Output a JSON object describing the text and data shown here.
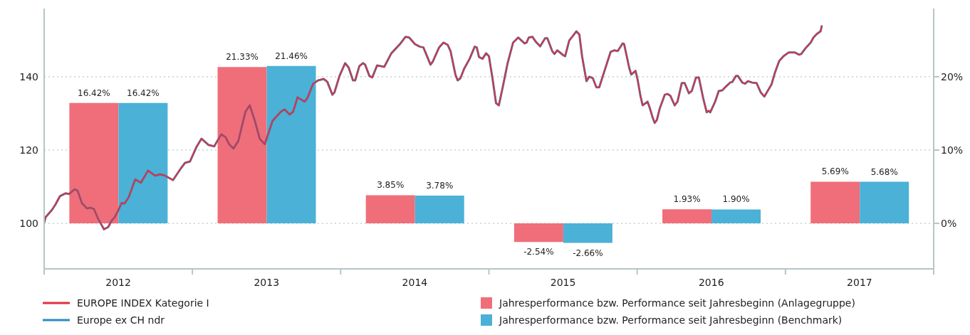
{
  "chart_data": {
    "type": "bar",
    "xlim": [
      2012,
      2018
    ],
    "xticks": [
      {
        "value": 2012,
        "label": null
      },
      {
        "value": 2012.5,
        "label": "2012"
      },
      {
        "value": 2013,
        "label": null
      },
      {
        "value": 2013.5,
        "label": "2013"
      },
      {
        "value": 2014,
        "label": null
      },
      {
        "value": 2014.5,
        "label": "2014"
      },
      {
        "value": 2015,
        "label": null
      },
      {
        "value": 2015.5,
        "label": "2015"
      },
      {
        "value": 2016,
        "label": null
      },
      {
        "value": 2016.5,
        "label": "2016"
      },
      {
        "value": 2017,
        "label": null
      },
      {
        "value": 2017.5,
        "label": "2017"
      },
      {
        "value": 2018,
        "label": null
      }
    ],
    "ylim": [
      87.6,
      158.6
    ],
    "yticks": [
      100,
      120,
      140
    ],
    "y2lim": [
      -6.2,
      29.3
    ],
    "y2ticks": [
      {
        "value": 0,
        "label": "0%"
      },
      {
        "value": 10,
        "label": "10%"
      },
      {
        "value": 20,
        "label": "20%"
      }
    ],
    "grid": "y",
    "legend": "bottom",
    "series": [
      {
        "name": "Jahresperformance bzw. Performance seit Jahresbeginn (Anlagegruppe)",
        "axis": "y2",
        "x": [
          2012.5,
          2013.5,
          2014.5,
          2015.5,
          2016.5,
          2017.5
        ],
        "color": "#f06e7a",
        "values": [
          16.42,
          21.33,
          3.85,
          -2.54,
          1.93,
          5.69
        ],
        "value_labels": [
          "16.42%",
          "21.33%",
          "3.85%",
          "-2.54%",
          "1.93%",
          "5.69%"
        ]
      },
      {
        "name": "Jahresperformance bzw. Performance seit Jahresbeginn (Benchmark)",
        "axis": "y2",
        "x": [
          2012.5,
          2013.5,
          2014.5,
          2015.5,
          2016.5,
          2017.5
        ],
        "color": "#4bb1d7",
        "values": [
          16.42,
          21.46,
          3.78,
          -2.66,
          1.9,
          5.68
        ],
        "value_labels": [
          "16.42%",
          "21.46%",
          "3.78%",
          "-2.66%",
          "1.90%",
          "5.68%"
        ]
      },
      {
        "name": "Europe ex CH ndr",
        "type": "line",
        "color": "#2a8cc4",
        "x": [
          2012.0,
          2012.01,
          2012.053,
          2012.077,
          2012.106,
          2012.144,
          2012.168,
          2012.206,
          2012.226,
          2012.254,
          2012.288,
          2012.312,
          2012.336,
          2012.365,
          2012.403,
          2012.432,
          2012.456,
          2012.475,
          2012.499,
          2012.523,
          2012.542,
          2012.571,
          2012.614,
          2012.653,
          2012.701,
          2012.749,
          2012.782,
          2012.816,
          2012.869,
          2012.922,
          2012.95,
          2012.984,
          2013.027,
          2013.061,
          2013.109,
          2013.147,
          2013.195,
          2013.224,
          2013.248,
          2013.277,
          2013.31,
          2013.358,
          2013.387,
          2013.421,
          2013.454,
          2013.488,
          2013.541,
          2013.598,
          2013.622,
          2013.656,
          2013.68,
          2013.709,
          2013.757,
          2013.776,
          2013.814,
          2013.848,
          2013.886,
          2013.91,
          2013.944,
          2013.958,
          2013.992,
          2014.03,
          2014.054,
          2014.083,
          2014.098,
          2014.126,
          2014.15,
          2014.165,
          2014.194,
          2014.213,
          2014.246,
          2014.294,
          2014.342,
          2014.4,
          2014.438,
          2014.462,
          2014.501,
          2014.534,
          2014.558,
          2014.606,
          2014.621,
          2014.664,
          2014.693,
          2014.722,
          2014.741,
          2014.774,
          2014.789,
          2014.808,
          2014.832,
          2014.87,
          2014.904,
          2014.918,
          2014.933,
          2014.957,
          2014.981,
          2015.0,
          2015.024,
          2015.048,
          2015.067,
          2015.096,
          2015.125,
          2015.163,
          2015.197,
          2015.24,
          2015.254,
          2015.269,
          2015.293,
          2015.317,
          2015.346,
          2015.379,
          2015.394,
          2015.427,
          2015.442,
          2015.461,
          2015.504,
          2015.514,
          2015.542,
          2015.566,
          2015.59,
          2015.61,
          2015.629,
          2015.658,
          2015.677,
          2015.701,
          2015.725,
          2015.744,
          2015.782,
          2015.821,
          2015.845,
          2015.869,
          2015.902,
          2015.912,
          2015.946,
          2015.96,
          2015.989,
          2016.003,
          2016.022,
          2016.037,
          2016.07,
          2016.085,
          2016.104,
          2016.118,
          2016.133,
          2016.152,
          2016.186,
          2016.205,
          2016.224,
          2016.253,
          2016.272,
          2016.301,
          2016.32,
          2016.349,
          2016.368,
          2016.397,
          2016.416,
          2016.445,
          2016.469,
          2016.483,
          2016.493,
          2016.526,
          2016.55,
          2016.574,
          2016.598,
          2016.627,
          2016.642,
          2016.666,
          2016.68,
          2016.709,
          2016.728,
          2016.747,
          2016.776,
          2016.805,
          2016.834,
          2016.858,
          2016.877,
          2016.906,
          2016.93,
          2016.958,
          2016.987,
          2017.021,
          2017.064,
          2017.093,
          2017.107,
          2017.136,
          2017.17,
          2017.189,
          2017.213,
          2017.237,
          2017.246
        ],
        "values": [
          100.2,
          101.7,
          103.7,
          105.2,
          107.4,
          108.2,
          108.0,
          109.3,
          108.9,
          105.6,
          104.1,
          104.3,
          103.9,
          101.2,
          98.4,
          99.0,
          100.8,
          101.6,
          103.5,
          105.6,
          105.4,
          107.2,
          112.0,
          111.1,
          114.4,
          113.0,
          113.4,
          113.0,
          111.8,
          115.0,
          116.5,
          116.9,
          120.8,
          123.1,
          121.4,
          121.0,
          124.3,
          123.5,
          121.6,
          120.4,
          122.5,
          130.5,
          132.2,
          128.0,
          123.1,
          121.6,
          128.0,
          130.5,
          131.1,
          129.7,
          130.5,
          134.4,
          133.2,
          134.2,
          138.1,
          139.0,
          139.4,
          138.6,
          135.1,
          135.7,
          140.2,
          143.7,
          142.5,
          139.0,
          139.0,
          142.9,
          143.7,
          143.3,
          140.2,
          139.8,
          143.1,
          142.7,
          146.4,
          148.9,
          150.9,
          150.7,
          148.9,
          148.2,
          148.0,
          143.3,
          144.1,
          148.0,
          149.3,
          148.7,
          147.0,
          140.6,
          139.0,
          139.6,
          142.1,
          144.9,
          148.2,
          148.0,
          145.4,
          144.9,
          146.4,
          145.6,
          139.6,
          132.8,
          132.2,
          137.7,
          143.5,
          149.3,
          150.7,
          149.1,
          149.3,
          150.7,
          150.9,
          149.5,
          148.3,
          150.5,
          150.5,
          147.0,
          146.2,
          147.2,
          145.8,
          145.6,
          149.9,
          151.1,
          152.4,
          151.5,
          145.4,
          138.8,
          140.0,
          139.6,
          137.1,
          137.1,
          141.9,
          146.8,
          147.2,
          147.0,
          149.1,
          148.9,
          142.5,
          140.6,
          141.6,
          139.2,
          134.8,
          132.2,
          133.2,
          131.5,
          128.9,
          127.4,
          128.2,
          131.3,
          135.1,
          135.3,
          134.8,
          132.2,
          133.2,
          138.3,
          138.3,
          135.5,
          136.1,
          139.8,
          139.8,
          134.2,
          130.3,
          130.7,
          130.3,
          133.2,
          136.1,
          136.3,
          137.3,
          138.4,
          138.6,
          140.2,
          140.2,
          138.4,
          138.1,
          138.8,
          138.4,
          138.3,
          135.7,
          134.6,
          135.9,
          137.9,
          141.2,
          144.3,
          145.6,
          146.6,
          146.6,
          146.0,
          146.2,
          147.8,
          149.3,
          150.7,
          151.7,
          152.4,
          154.0
        ]
      },
      {
        "name": "EUROPE INDEX Kategorie I",
        "type": "line",
        "color": "#e0303f",
        "x": [
          2012.0,
          2012.01,
          2012.053,
          2012.077,
          2012.106,
          2012.144,
          2012.168,
          2012.206,
          2012.226,
          2012.254,
          2012.288,
          2012.312,
          2012.336,
          2012.365,
          2012.403,
          2012.432,
          2012.456,
          2012.475,
          2012.499,
          2012.523,
          2012.542,
          2012.571,
          2012.614,
          2012.653,
          2012.701,
          2012.749,
          2012.782,
          2012.816,
          2012.869,
          2012.922,
          2012.95,
          2012.984,
          2013.027,
          2013.061,
          2013.109,
          2013.147,
          2013.195,
          2013.224,
          2013.248,
          2013.277,
          2013.31,
          2013.358,
          2013.387,
          2013.421,
          2013.454,
          2013.488,
          2013.541,
          2013.598,
          2013.622,
          2013.656,
          2013.68,
          2013.709,
          2013.757,
          2013.776,
          2013.814,
          2013.848,
          2013.886,
          2013.91,
          2013.944,
          2013.958,
          2013.992,
          2014.03,
          2014.054,
          2014.083,
          2014.098,
          2014.126,
          2014.15,
          2014.165,
          2014.194,
          2014.213,
          2014.246,
          2014.294,
          2014.342,
          2014.4,
          2014.438,
          2014.462,
          2014.501,
          2014.534,
          2014.558,
          2014.606,
          2014.621,
          2014.664,
          2014.693,
          2014.722,
          2014.741,
          2014.774,
          2014.789,
          2014.808,
          2014.832,
          2014.87,
          2014.904,
          2014.918,
          2014.933,
          2014.957,
          2014.981,
          2015.0,
          2015.024,
          2015.048,
          2015.067,
          2015.096,
          2015.125,
          2015.163,
          2015.197,
          2015.24,
          2015.254,
          2015.269,
          2015.293,
          2015.317,
          2015.346,
          2015.379,
          2015.394,
          2015.427,
          2015.442,
          2015.461,
          2015.504,
          2015.514,
          2015.542,
          2015.566,
          2015.59,
          2015.61,
          2015.629,
          2015.658,
          2015.677,
          2015.701,
          2015.725,
          2015.744,
          2015.782,
          2015.821,
          2015.845,
          2015.869,
          2015.902,
          2015.912,
          2015.946,
          2015.96,
          2015.989,
          2016.003,
          2016.022,
          2016.037,
          2016.07,
          2016.085,
          2016.104,
          2016.118,
          2016.133,
          2016.152,
          2016.186,
          2016.205,
          2016.224,
          2016.253,
          2016.272,
          2016.301,
          2016.32,
          2016.349,
          2016.368,
          2016.397,
          2016.416,
          2016.445,
          2016.469,
          2016.483,
          2016.493,
          2016.526,
          2016.55,
          2016.574,
          2016.598,
          2016.627,
          2016.642,
          2016.666,
          2016.68,
          2016.709,
          2016.728,
          2016.747,
          2016.776,
          2016.805,
          2016.834,
          2016.858,
          2016.877,
          2016.906,
          2016.93,
          2016.958,
          2016.987,
          2017.021,
          2017.064,
          2017.093,
          2017.107,
          2017.136,
          2017.17,
          2017.189,
          2017.213,
          2017.237,
          2017.246
        ],
        "values": [
          100.2,
          101.7,
          103.7,
          105.2,
          107.4,
          108.2,
          108.0,
          109.3,
          108.9,
          105.6,
          104.1,
          104.3,
          103.9,
          101.2,
          98.4,
          99.0,
          100.8,
          101.6,
          103.5,
          105.6,
          105.4,
          107.2,
          112.0,
          111.1,
          114.4,
          113.0,
          113.4,
          113.0,
          111.8,
          115.0,
          116.5,
          116.9,
          120.8,
          123.1,
          121.4,
          121.0,
          124.3,
          123.5,
          121.6,
          120.4,
          122.5,
          130.5,
          132.2,
          128.0,
          123.1,
          121.6,
          128.0,
          130.5,
          131.1,
          129.7,
          130.5,
          134.4,
          133.2,
          134.2,
          138.1,
          139.0,
          139.4,
          138.6,
          135.1,
          135.7,
          140.2,
          143.7,
          142.5,
          139.0,
          139.0,
          142.9,
          143.7,
          143.3,
          140.2,
          139.8,
          143.1,
          142.7,
          146.4,
          148.9,
          150.9,
          150.7,
          148.9,
          148.2,
          148.0,
          143.3,
          144.1,
          148.0,
          149.3,
          148.7,
          147.0,
          140.6,
          139.0,
          139.6,
          142.1,
          144.9,
          148.2,
          148.0,
          145.4,
          144.9,
          146.4,
          145.6,
          139.6,
          132.8,
          132.2,
          137.7,
          143.5,
          149.3,
          150.7,
          149.1,
          149.3,
          150.7,
          150.9,
          149.5,
          148.3,
          150.5,
          150.5,
          147.0,
          146.2,
          147.2,
          145.8,
          145.6,
          149.9,
          151.1,
          152.4,
          151.5,
          145.4,
          138.8,
          140.0,
          139.6,
          137.1,
          137.1,
          141.9,
          146.8,
          147.2,
          147.0,
          149.1,
          148.9,
          142.5,
          140.6,
          141.6,
          139.2,
          134.8,
          132.2,
          133.2,
          131.5,
          128.9,
          127.4,
          128.2,
          131.3,
          135.1,
          135.3,
          134.8,
          132.2,
          133.2,
          138.3,
          138.3,
          135.5,
          136.1,
          139.8,
          139.8,
          134.2,
          130.3,
          130.7,
          130.3,
          133.2,
          136.1,
          136.3,
          137.3,
          138.4,
          138.6,
          140.2,
          140.2,
          138.4,
          138.1,
          138.8,
          138.4,
          138.3,
          135.7,
          134.6,
          135.9,
          137.9,
          141.2,
          144.3,
          145.6,
          146.6,
          146.6,
          146.0,
          146.2,
          147.8,
          149.3,
          150.7,
          151.7,
          152.4,
          154.0
        ]
      }
    ]
  }
}
